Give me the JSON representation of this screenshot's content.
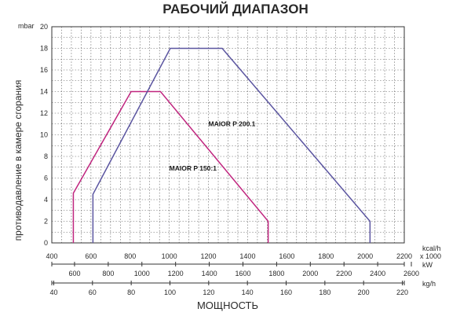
{
  "chart_data": {
    "type": "area",
    "title": "РАБОЧИЙ ДИАПАЗОН",
    "ylabel": "противодавление в камере сгорания",
    "yunit": "mbar",
    "xlabel": "МОЩНОСТЬ",
    "ylim": [
      0,
      20
    ],
    "yticks": [
      0,
      2,
      4,
      6,
      8,
      10,
      12,
      14,
      16,
      18,
      20
    ],
    "grid": true,
    "x_axes": [
      {
        "unit": "kcal/h",
        "unit2": "x 1000",
        "range": [
          400,
          2200
        ],
        "ticks": [
          400,
          600,
          800,
          1000,
          1200,
          1400,
          1600,
          1800,
          2000,
          2200
        ]
      },
      {
        "unit": "kW",
        "range": [
          465,
          2558
        ],
        "ticks": [
          600,
          800,
          1000,
          1200,
          1400,
          1600,
          1800,
          2000,
          2200,
          2400,
          2600
        ]
      },
      {
        "unit": "kg/h",
        "range": [
          39,
          221
        ],
        "ticks": [
          40,
          60,
          80,
          100,
          120,
          140,
          160,
          180,
          200,
          220
        ]
      }
    ],
    "series": [
      {
        "name": "MAIOR P 150:1",
        "color": "#c0267f",
        "points": [
          [
            510,
            0
          ],
          [
            510,
            4.6
          ],
          [
            805,
            14
          ],
          [
            955,
            14
          ],
          [
            1505,
            2
          ],
          [
            1505,
            0
          ]
        ]
      },
      {
        "name": "MAIOR P 200.1",
        "color": "#5b55a0",
        "points": [
          [
            610,
            0
          ],
          [
            610,
            4.5
          ],
          [
            1005,
            18
          ],
          [
            1270,
            18
          ],
          [
            2025,
            2
          ],
          [
            2025,
            0
          ]
        ]
      }
    ]
  }
}
